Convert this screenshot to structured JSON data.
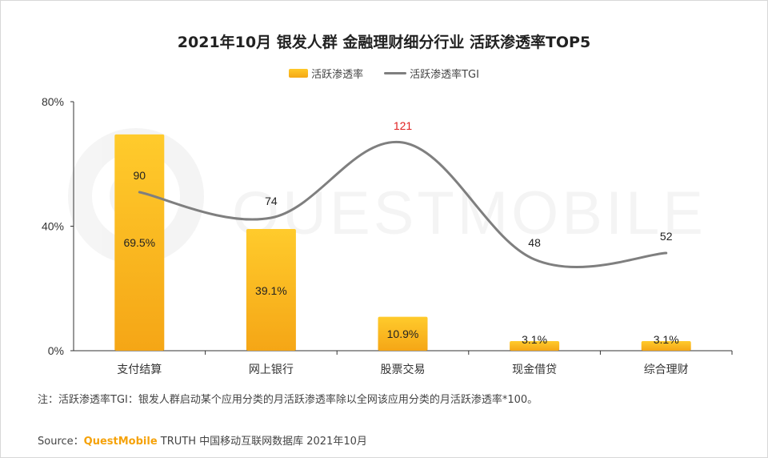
{
  "chart_data": {
    "type": "bar",
    "title": "2021年10月 银发人群 金融理财细分行业 活跃渗透率TOP5",
    "categories": [
      "支付结算",
      "网上银行",
      "股票交易",
      "现金借贷",
      "综合理财"
    ],
    "series": [
      {
        "name": "活跃渗透率",
        "type": "bar",
        "values": [
          69.5,
          39.1,
          10.9,
          3.1,
          3.1
        ],
        "labels": [
          "69.5%",
          "39.1%",
          "10.9%",
          "3.1%",
          "3.1%"
        ],
        "color": "#fbbf1f"
      },
      {
        "name": "活跃渗透率TGI",
        "type": "line",
        "values": [
          90,
          74,
          121,
          48,
          52
        ],
        "labels": [
          "90",
          "74",
          "121",
          "48",
          "52"
        ],
        "color": "#7f7f7f",
        "highlight_color": "#e02020"
      }
    ],
    "y_ticks": [
      "0%",
      "40%",
      "80%"
    ],
    "ylim": [
      0,
      80
    ]
  },
  "footer": {
    "note": "注：活跃渗透率TGI：银发人群启动某个应用分类的月活跃渗透率除以全网该应用分类的月活跃渗透率*100。",
    "source_prefix": "Source：",
    "source_brand": "QuestMobile",
    "source_rest": " TRUTH 中国移动互联网数据库 2021年10月"
  },
  "watermark": "QUESTMOBILE"
}
